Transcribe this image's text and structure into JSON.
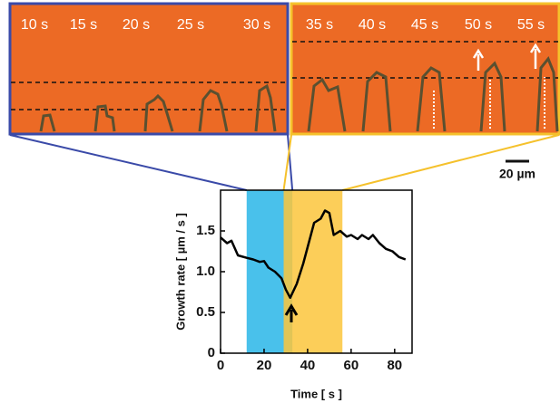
{
  "panels": {
    "left": {
      "labels": [
        "10 s",
        "15 s",
        "20 s",
        "25 s",
        "30 s"
      ]
    },
    "right": {
      "labels": [
        "35 s",
        "40 s",
        "45 s",
        "50 s",
        "55 s"
      ]
    },
    "scale_bar": "20 µm"
  },
  "chart_data": {
    "type": "line",
    "x_label": "Time [ s ]",
    "y_label": "Growth rate [ µm / s ]",
    "x": [
      0,
      3,
      5,
      8,
      12,
      15,
      18,
      20,
      22,
      25,
      28,
      30,
      32,
      35,
      38,
      41,
      43,
      46,
      48,
      50,
      52,
      55,
      58,
      60,
      63,
      65,
      68,
      70,
      73,
      76,
      79,
      82,
      85
    ],
    "series": [
      {
        "color": "#000000",
        "values": [
          1.42,
          1.35,
          1.38,
          1.2,
          1.17,
          1.15,
          1.12,
          1.13,
          1.05,
          1.0,
          0.92,
          0.78,
          0.68,
          0.85,
          1.1,
          1.4,
          1.6,
          1.65,
          1.75,
          1.72,
          1.45,
          1.5,
          1.43,
          1.45,
          1.4,
          1.45,
          1.4,
          1.45,
          1.35,
          1.28,
          1.25,
          1.18,
          1.15
        ]
      }
    ],
    "spans": [
      {
        "start": 12,
        "end": 33,
        "color": "#29b6e8"
      },
      {
        "start": 29,
        "end": 56,
        "color": "#fcc63c"
      }
    ],
    "xlim": [
      0,
      88
    ],
    "xticks": [
      0,
      20,
      40,
      60,
      80
    ],
    "ylim": [
      0,
      2
    ],
    "yticks": [
      0,
      0.5,
      {
        "value": 1,
        "label": "1.0"
      },
      1.5
    ]
  }
}
